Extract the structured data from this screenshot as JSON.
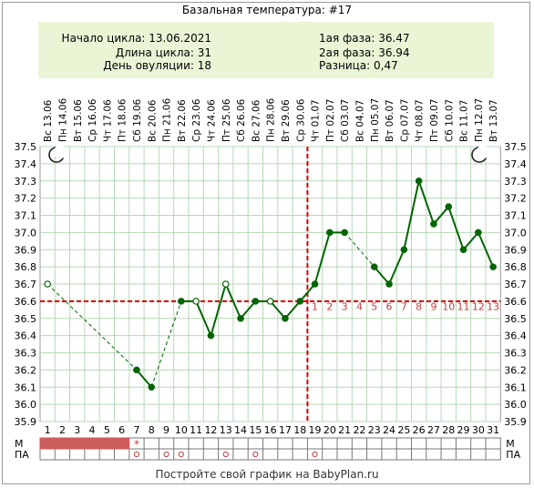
{
  "title": "Базальная температура: #17",
  "info": {
    "cycle_start": "Начало цикла: 13.06.2021",
    "cycle_length": "Длина цикла: 31",
    "ovulation_day": "День овуляции: 18",
    "phase1": "1ая фаза: 36.47",
    "phase2": "2ая фаза: 36.94",
    "difference": "Разница: 0,47"
  },
  "footer": "Постройте свой график на BabyPlan.ru",
  "row_labels": {
    "m": "М",
    "pa": "ПА"
  },
  "icons": {
    "moon_left": "crescent-moon-icon",
    "moon_right": "crescent-moon-icon"
  },
  "colors": {
    "line": "#006400",
    "grid": "#b7d7b7",
    "coverline": "#d40000",
    "menses": "#cd5c5c",
    "luteal_labels": "#c04040",
    "info_bg": "#eaf5d6"
  },
  "chart_data": {
    "type": "line",
    "ylim": [
      35.9,
      37.5
    ],
    "yticks": [
      "35.9",
      "36.0",
      "36.1",
      "36.2",
      "36.3",
      "36.4",
      "36.5",
      "36.6",
      "36.7",
      "36.8",
      "36.9",
      "37.0",
      "37.1",
      "37.2",
      "37.3",
      "37.4",
      "37.5"
    ],
    "days": [
      "1",
      "2",
      "3",
      "4",
      "5",
      "6",
      "7",
      "8",
      "9",
      "10",
      "11",
      "12",
      "13",
      "14",
      "15",
      "16",
      "17",
      "18",
      "19",
      "20",
      "21",
      "22",
      "23",
      "24",
      "25",
      "26",
      "27",
      "28",
      "29",
      "30",
      "31"
    ],
    "dates": [
      "Вс 13.06",
      "Пн 14.06",
      "Вт 15.06",
      "Ср 16.06",
      "Чт 17.06",
      "Пт 18.06",
      "Сб 19.06",
      "Вс 20.06",
      "Пн 21.06",
      "Вт 22.06",
      "Ср 23.06",
      "Чт 24.06",
      "Пт 25.06",
      "Сб 26.06",
      "Вс 27.06",
      "Пн 28.06",
      "Вт 29.06",
      "Ср 30.06",
      "Чт 01.07",
      "Пт 02.07",
      "Сб 03.07",
      "Вс 04.07",
      "Пн 05.07",
      "Вт 06.07",
      "Ср 07.07",
      "Чт 08.07",
      "Пт 09.07",
      "Сб 10.07",
      "Вс 11.07",
      "Пн 12.07",
      "Вт 13.07"
    ],
    "temperatures": [
      36.7,
      null,
      null,
      null,
      null,
      null,
      36.2,
      36.1,
      null,
      36.6,
      36.6,
      36.4,
      36.7,
      36.5,
      36.6,
      36.6,
      36.5,
      36.6,
      36.7,
      37.0,
      37.0,
      null,
      36.8,
      36.7,
      36.9,
      37.3,
      37.05,
      37.15,
      36.9,
      37.0,
      36.8
    ],
    "open_points": [
      1,
      11,
      13,
      16
    ],
    "coverline": 36.6,
    "ovulation_day": 18,
    "luteal_day_labels": [
      "1",
      "2",
      "3",
      "4",
      "5",
      "6",
      "7",
      "8",
      "9",
      "10",
      "11",
      "12",
      "13"
    ],
    "menses_days": [
      1,
      2,
      3,
      4,
      5,
      6
    ],
    "menses_star_day": 7,
    "pa_days": [
      7,
      9,
      10,
      13,
      15,
      19
    ]
  }
}
